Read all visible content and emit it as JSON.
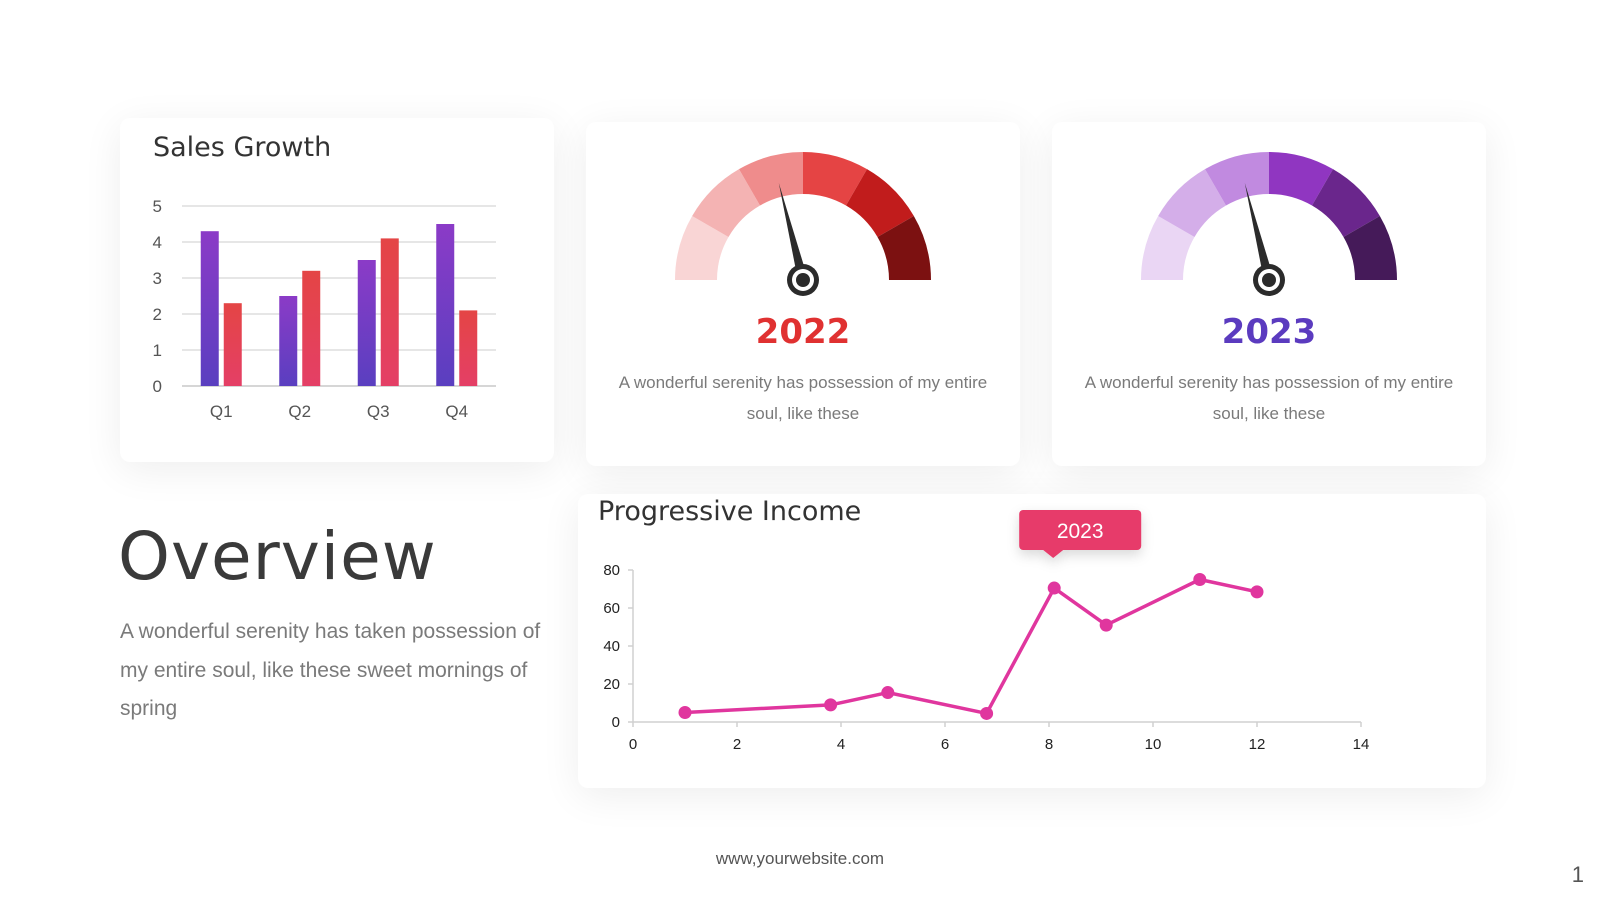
{
  "overview": {
    "title": "Overview",
    "description": "A wonderful serenity has taken possession of my entire soul, like these sweet mornings of spring"
  },
  "gauges": [
    {
      "year": "2022",
      "year_color": "#e03131",
      "description": "A wonderful serenity has possession of my entire soul, like these",
      "segment_colors": [
        "#f9d5d5",
        "#f4b3b3",
        "#ef8c8c",
        "#e54444",
        "#c11c1c",
        "#7c1111"
      ]
    },
    {
      "year": "2023",
      "year_color": "#5b3bbf",
      "description": "A wonderful serenity has possession of my entire soul, like these",
      "segment_colors": [
        "#ead6f4",
        "#d4aee9",
        "#c18ae0",
        "#9036c1",
        "#6a268c",
        "#451a59"
      ]
    }
  ],
  "footer": {
    "website": "www,yourwebsite.com",
    "page_number": "1"
  },
  "chart_data": [
    {
      "type": "bar",
      "title": "Sales Growth",
      "categories": [
        "Q1",
        "Q2",
        "Q3",
        "Q4"
      ],
      "series": [
        {
          "values": [
            4.3,
            2.5,
            3.5,
            4.5
          ],
          "color_top": "#8b3bc7",
          "color_bottom": "#5a3fc0"
        },
        {
          "values": [
            2.3,
            3.2,
            4.1,
            2.1
          ],
          "color_top": "#e44545",
          "color_bottom": "#e43f66"
        }
      ],
      "ylim": [
        0,
        5
      ],
      "yticks": [
        "0",
        "1",
        "2",
        "3",
        "4",
        "5"
      ],
      "grid": true
    },
    {
      "type": "line",
      "title": "Progressive Income",
      "x": [
        1,
        3.8,
        4.9,
        6.8,
        8.1,
        9.1,
        10.9,
        12
      ],
      "y": [
        5,
        9,
        15.5,
        4.5,
        70.5,
        51,
        75,
        68.5
      ],
      "color": "#e0369e",
      "xlim": [
        0,
        14
      ],
      "ylim": [
        0,
        80
      ],
      "xticks": [
        "0",
        "2",
        "4",
        "6",
        "8",
        "10",
        "12",
        "14"
      ],
      "yticks": [
        "0",
        "20",
        "40",
        "60",
        "80"
      ],
      "annotation": {
        "label": "2023",
        "x": 8.6,
        "color": "#e73a6a"
      }
    }
  ]
}
